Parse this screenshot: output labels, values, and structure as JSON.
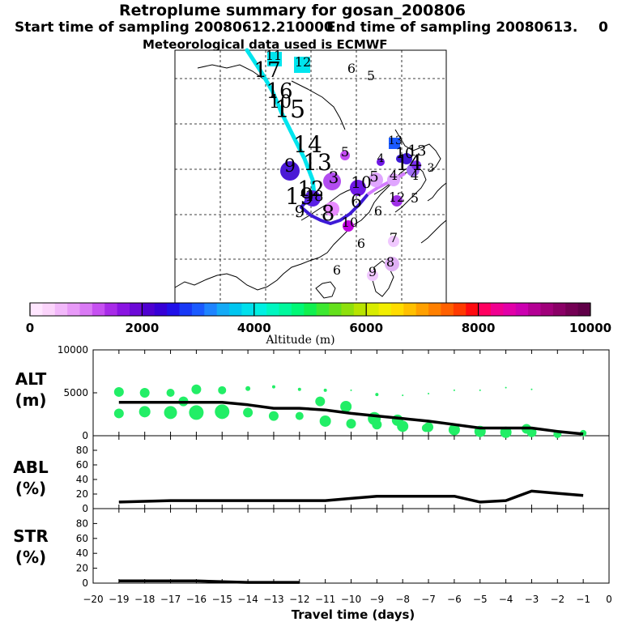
{
  "header": {
    "title": "Retroplume summary for gosan_200806",
    "start_label": "Start time of sampling 20080612.210000",
    "end_label": "End time of sampling 20080613.",
    "end_suffix": "0",
    "met_label": "Meteorological data used is ECMWF"
  },
  "map": {
    "labels": [
      {
        "t": "11",
        "x": 338,
        "y": 74,
        "s": 16,
        "c": "#000"
      },
      {
        "t": "12",
        "x": 374,
        "y": 82,
        "s": 16,
        "c": "#000"
      },
      {
        "t": "17",
        "x": 330,
        "y": 95,
        "s": 26,
        "c": "#000"
      },
      {
        "t": "6",
        "x": 434,
        "y": 90,
        "s": 16,
        "c": "#000"
      },
      {
        "t": "5",
        "x": 458,
        "y": 99,
        "s": 16,
        "c": "#000"
      },
      {
        "t": "16",
        "x": 345,
        "y": 121,
        "s": 26,
        "c": "#000"
      },
      {
        "t": "10",
        "x": 346,
        "y": 133,
        "s": 22,
        "c": "#000"
      },
      {
        "t": "15",
        "x": 358,
        "y": 145,
        "s": 30,
        "c": "#000"
      },
      {
        "t": "14",
        "x": 380,
        "y": 188,
        "s": 28,
        "c": "#000"
      },
      {
        "t": "5",
        "x": 426,
        "y": 193,
        "s": 16,
        "c": "#000"
      },
      {
        "t": "13",
        "x": 488,
        "y": 178,
        "s": 14,
        "c": "#000"
      },
      {
        "t": "9",
        "x": 358,
        "y": 212,
        "s": 22,
        "c": "#000"
      },
      {
        "t": "13",
        "x": 392,
        "y": 210,
        "s": 28,
        "c": "#000"
      },
      {
        "t": "4",
        "x": 470,
        "y": 200,
        "s": 14,
        "c": "#000"
      },
      {
        "t": "10",
        "x": 500,
        "y": 195,
        "s": 18,
        "c": "#000"
      },
      {
        "t": "13",
        "x": 515,
        "y": 192,
        "s": 18,
        "c": "#000"
      },
      {
        "t": "14",
        "x": 505,
        "y": 210,
        "s": 26,
        "c": "#000"
      },
      {
        "t": "3",
        "x": 532,
        "y": 212,
        "s": 14,
        "c": "#000"
      },
      {
        "t": "3",
        "x": 412,
        "y": 226,
        "s": 20,
        "c": "#000"
      },
      {
        "t": "5",
        "x": 462,
        "y": 224,
        "s": 18,
        "c": "#000"
      },
      {
        "t": "4",
        "x": 486,
        "y": 222,
        "s": 16,
        "c": "#000"
      },
      {
        "t": "4",
        "x": 512,
        "y": 222,
        "s": 16,
        "c": "#000"
      },
      {
        "t": "10",
        "x": 446,
        "y": 232,
        "s": 20,
        "c": "#000"
      },
      {
        "t": "12",
        "x": 384,
        "y": 242,
        "s": 26,
        "c": "#000"
      },
      {
        "t": "18",
        "x": 388,
        "y": 248,
        "s": 18,
        "c": "#000"
      },
      {
        "t": "19",
        "x": 370,
        "y": 252,
        "s": 28,
        "c": "#000"
      },
      {
        "t": "12",
        "x": 490,
        "y": 249,
        "s": 16,
        "c": "#000"
      },
      {
        "t": "5",
        "x": 512,
        "y": 250,
        "s": 16,
        "c": "#000"
      },
      {
        "t": "6",
        "x": 440,
        "y": 256,
        "s": 22,
        "c": "#000"
      },
      {
        "t": "9",
        "x": 370,
        "y": 268,
        "s": 20,
        "c": "#000"
      },
      {
        "t": "8",
        "x": 405,
        "y": 272,
        "s": 26,
        "c": "#000"
      },
      {
        "t": "6",
        "x": 467,
        "y": 266,
        "s": 16,
        "c": "#000"
      },
      {
        "t": "10",
        "x": 432,
        "y": 280,
        "s": 16,
        "c": "#000"
      },
      {
        "t": "7",
        "x": 486,
        "y": 299,
        "s": 16,
        "c": "#000"
      },
      {
        "t": "6",
        "x": 446,
        "y": 306,
        "s": 16,
        "c": "#000"
      },
      {
        "t": "8",
        "x": 482,
        "y": 329,
        "s": 16,
        "c": "#000"
      },
      {
        "t": "9",
        "x": 460,
        "y": 341,
        "s": 16,
        "c": "#000"
      },
      {
        "t": "6",
        "x": 416,
        "y": 339,
        "s": 16,
        "c": "#000"
      }
    ]
  },
  "colorbar": {
    "tick_labels": [
      "0",
      "2000",
      "4000",
      "6000",
      "8000",
      "10000"
    ],
    "label": "Altitude (m)"
  },
  "panels": {
    "alt": {
      "label1": "ALT",
      "label2": "(m)",
      "ticks": [
        "0",
        "5000",
        "10000"
      ]
    },
    "abl": {
      "label1": "ABL",
      "label2": "(%)",
      "ticks": [
        "0",
        "20",
        "40",
        "60",
        "80"
      ]
    },
    "str": {
      "label1": "STR",
      "label2": "(%)",
      "ticks": [
        "0",
        "20",
        "40",
        "60",
        "80"
      ]
    }
  },
  "xaxis": {
    "ticks": [
      "−20",
      "−19",
      "−18",
      "−17",
      "−16",
      "−15",
      "−14",
      "−13",
      "−12",
      "−11",
      "−10",
      "−9",
      "−8",
      "−7",
      "−6",
      "−5",
      "−4",
      "−3",
      "−2",
      "−1",
      "0"
    ],
    "label": "Travel time (days)"
  },
  "chart_data": {
    "type": "line",
    "x": [
      -19,
      -18,
      -17,
      -16,
      -15,
      -14,
      -13,
      -12,
      -11,
      -10,
      -9,
      -8,
      -7,
      -6,
      -5,
      -4,
      -3,
      -2,
      -1
    ],
    "xlabel": "Travel time (days)",
    "xlim": [
      -20,
      0
    ],
    "series": [
      {
        "name": "ALT mean (m)",
        "ylim": [
          0,
          10000
        ],
        "values": [
          3900,
          3900,
          3900,
          3900,
          3900,
          3600,
          3200,
          3200,
          3000,
          2600,
          2300,
          2000,
          1700,
          1300,
          900,
          900,
          900,
          500,
          200
        ]
      },
      {
        "name": "ALT plume upper (m)",
        "values": [
          5100,
          5000,
          5000,
          5400,
          5300,
          5500,
          5700,
          5400,
          5300,
          5300,
          4800,
          4700,
          4900,
          5300,
          5300,
          5600,
          5400,
          null,
          null
        ]
      },
      {
        "name": "ALT plume lower (m)",
        "values": [
          2600,
          2800,
          2700,
          2700,
          2800,
          2700,
          2300,
          2300,
          1700,
          1400,
          1300,
          1100,
          1000,
          700,
          500,
          400,
          400,
          200,
          300
        ]
      },
      {
        "name": "ABL (%)",
        "ylim": [
          0,
          100
        ],
        "values": [
          9,
          10,
          11,
          11,
          11,
          11,
          11,
          11,
          11,
          14,
          17,
          17,
          17,
          17,
          9,
          11,
          24,
          21,
          18
        ]
      },
      {
        "name": "STR (%)",
        "ylim": [
          0,
          100
        ],
        "values": [
          3,
          3,
          3,
          3,
          2,
          1,
          1,
          1,
          null,
          null,
          null,
          null,
          null,
          null,
          null,
          null,
          null,
          null,
          null
        ]
      }
    ]
  }
}
